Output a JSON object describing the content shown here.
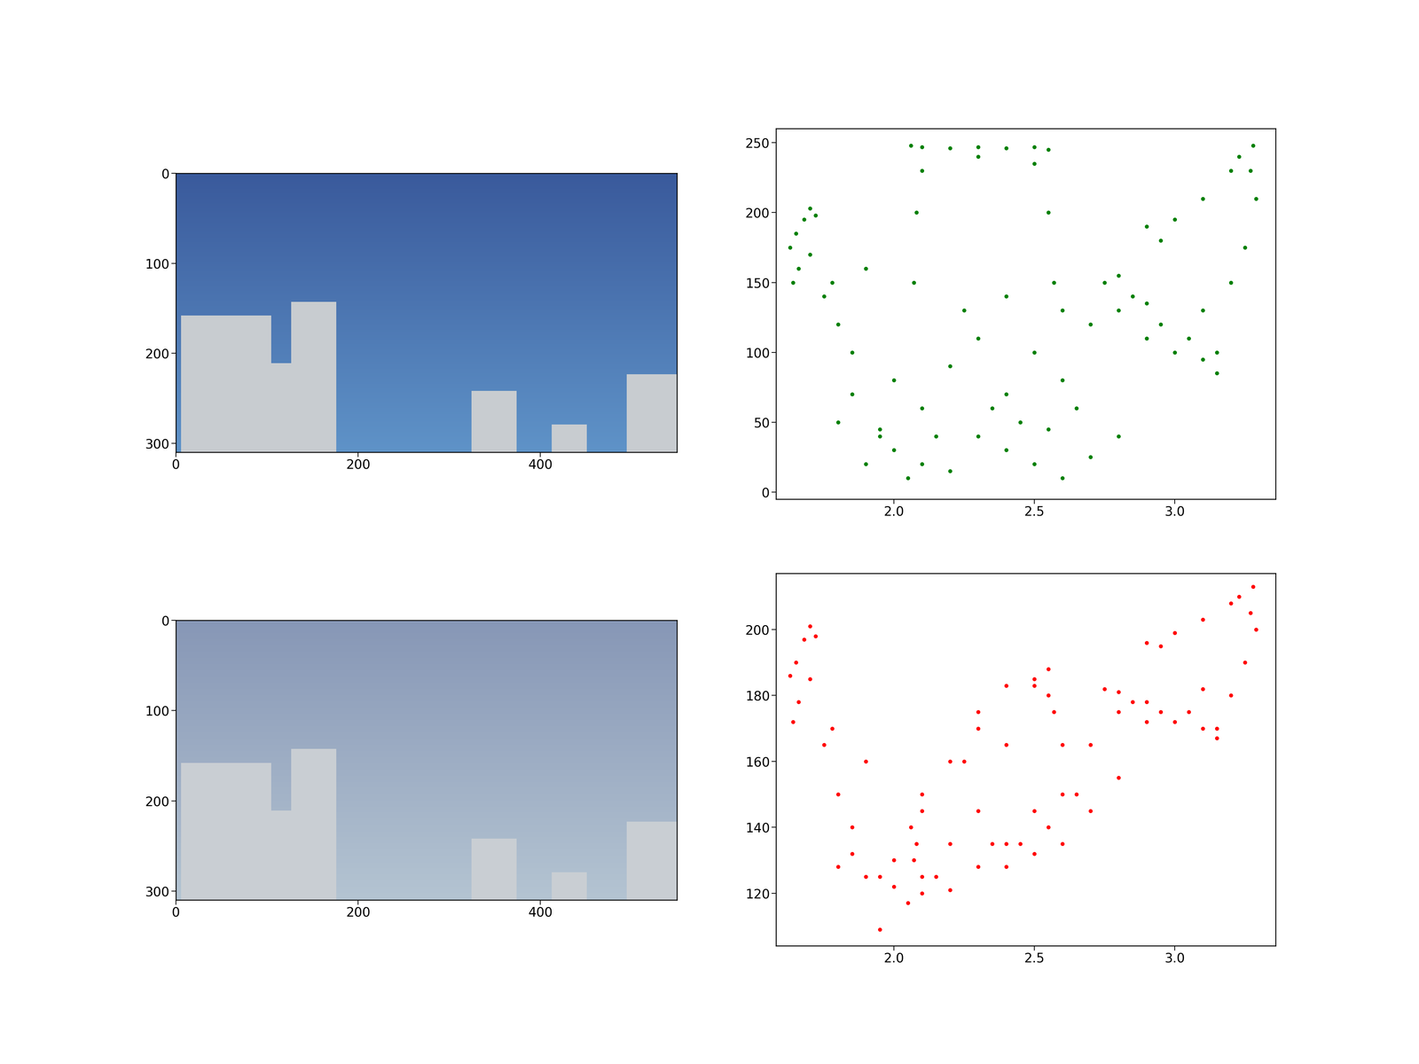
{
  "chart_data": [
    {
      "type": "image",
      "xlim": [
        0,
        550
      ],
      "ylim": [
        310,
        0
      ],
      "xticks": [
        0,
        200,
        400
      ],
      "yticks": [
        0,
        100,
        200,
        300
      ]
    },
    {
      "type": "scatter",
      "color": "green",
      "marker": "o",
      "xlim": [
        1.58,
        3.36
      ],
      "ylim": [
        -5,
        260
      ],
      "xticks": [
        2.0,
        2.5,
        3.0
      ],
      "yticks": [
        0,
        50,
        100,
        150,
        200,
        250
      ],
      "x": [
        1.63,
        1.65,
        1.68,
        1.7,
        1.72,
        1.66,
        1.64,
        1.7,
        1.75,
        1.8,
        1.85,
        1.78,
        1.9,
        2.06,
        2.1,
        2.2,
        2.3,
        2.4,
        2.5,
        2.55,
        2.08,
        2.07,
        2.55,
        2.57,
        2.1,
        2.5,
        2.3,
        2.0,
        2.1,
        2.2,
        2.3,
        2.4,
        2.5,
        2.6,
        2.7,
        2.8,
        2.9,
        3.0,
        3.1,
        2.0,
        2.1,
        2.2,
        2.3,
        2.4,
        2.5,
        2.6,
        2.7,
        2.8,
        1.9,
        1.8,
        1.85,
        2.05,
        2.75,
        2.8,
        2.85,
        2.95,
        2.15,
        2.35,
        2.45,
        2.55,
        2.65,
        1.95,
        2.25,
        2.4,
        2.6,
        2.9,
        2.9,
        3.0,
        3.1,
        3.2,
        3.28,
        3.27,
        3.29,
        3.25,
        3.2,
        3.15,
        3.15,
        3.05,
        2.95,
        3.1,
        3.23,
        1.95
      ],
      "values": [
        175,
        185,
        195,
        203,
        198,
        160,
        150,
        170,
        140,
        120,
        100,
        150,
        160,
        248,
        247,
        246,
        247,
        246,
        247,
        245,
        200,
        150,
        200,
        150,
        230,
        235,
        240,
        80,
        60,
        90,
        110,
        70,
        100,
        80,
        120,
        130,
        110,
        100,
        95,
        30,
        20,
        15,
        40,
        30,
        20,
        10,
        25,
        40,
        20,
        50,
        70,
        10,
        150,
        155,
        140,
        120,
        40,
        60,
        50,
        45,
        60,
        45,
        130,
        140,
        130,
        135,
        190,
        195,
        210,
        230,
        248,
        230,
        210,
        175,
        150,
        100,
        85,
        110,
        180,
        130,
        240,
        40
      ]
    },
    {
      "type": "image",
      "xlim": [
        0,
        550
      ],
      "ylim": [
        310,
        0
      ],
      "xticks": [
        0,
        200,
        400
      ],
      "yticks": [
        0,
        100,
        200,
        300
      ]
    },
    {
      "type": "scatter",
      "color": "red",
      "marker": "o",
      "xlim": [
        1.58,
        3.36
      ],
      "ylim": [
        104,
        217
      ],
      "xticks": [
        2.0,
        2.5,
        3.0
      ],
      "yticks": [
        120,
        140,
        160,
        180,
        200
      ],
      "x": [
        1.63,
        1.65,
        1.68,
        1.7,
        1.72,
        1.66,
        1.64,
        1.7,
        1.75,
        1.8,
        1.85,
        1.78,
        1.9,
        2.06,
        2.1,
        2.2,
        2.3,
        2.4,
        2.5,
        2.55,
        2.08,
        2.07,
        2.55,
        2.57,
        2.1,
        2.5,
        2.3,
        2.0,
        2.1,
        2.2,
        2.3,
        2.4,
        2.5,
        2.6,
        2.7,
        2.8,
        2.9,
        3.0,
        3.1,
        2.0,
        2.1,
        2.2,
        2.3,
        2.4,
        2.5,
        2.6,
        2.7,
        2.8,
        1.9,
        1.8,
        1.85,
        2.05,
        2.75,
        2.8,
        2.85,
        2.95,
        2.15,
        2.35,
        2.45,
        2.55,
        2.65,
        1.95,
        2.25,
        2.4,
        2.6,
        2.9,
        2.9,
        3.0,
        3.1,
        3.2,
        3.28,
        3.27,
        3.29,
        3.25,
        3.2,
        3.15,
        3.15,
        3.05,
        2.95,
        3.1,
        3.23,
        1.95
      ],
      "values": [
        186,
        190,
        197,
        201,
        198,
        178,
        172,
        185,
        165,
        150,
        140,
        170,
        160,
        140,
        150,
        160,
        175,
        183,
        185,
        188,
        135,
        130,
        180,
        175,
        145,
        183,
        170,
        130,
        125,
        135,
        145,
        135,
        145,
        150,
        165,
        175,
        172,
        172,
        170,
        122,
        120,
        121,
        128,
        128,
        132,
        135,
        145,
        155,
        125,
        128,
        132,
        117,
        182,
        181,
        178,
        175,
        125,
        135,
        135,
        140,
        150,
        125,
        160,
        165,
        165,
        178,
        196,
        199,
        203,
        208,
        213,
        205,
        200,
        190,
        180,
        170,
        167,
        175,
        195,
        182,
        210,
        109
      ]
    }
  ]
}
